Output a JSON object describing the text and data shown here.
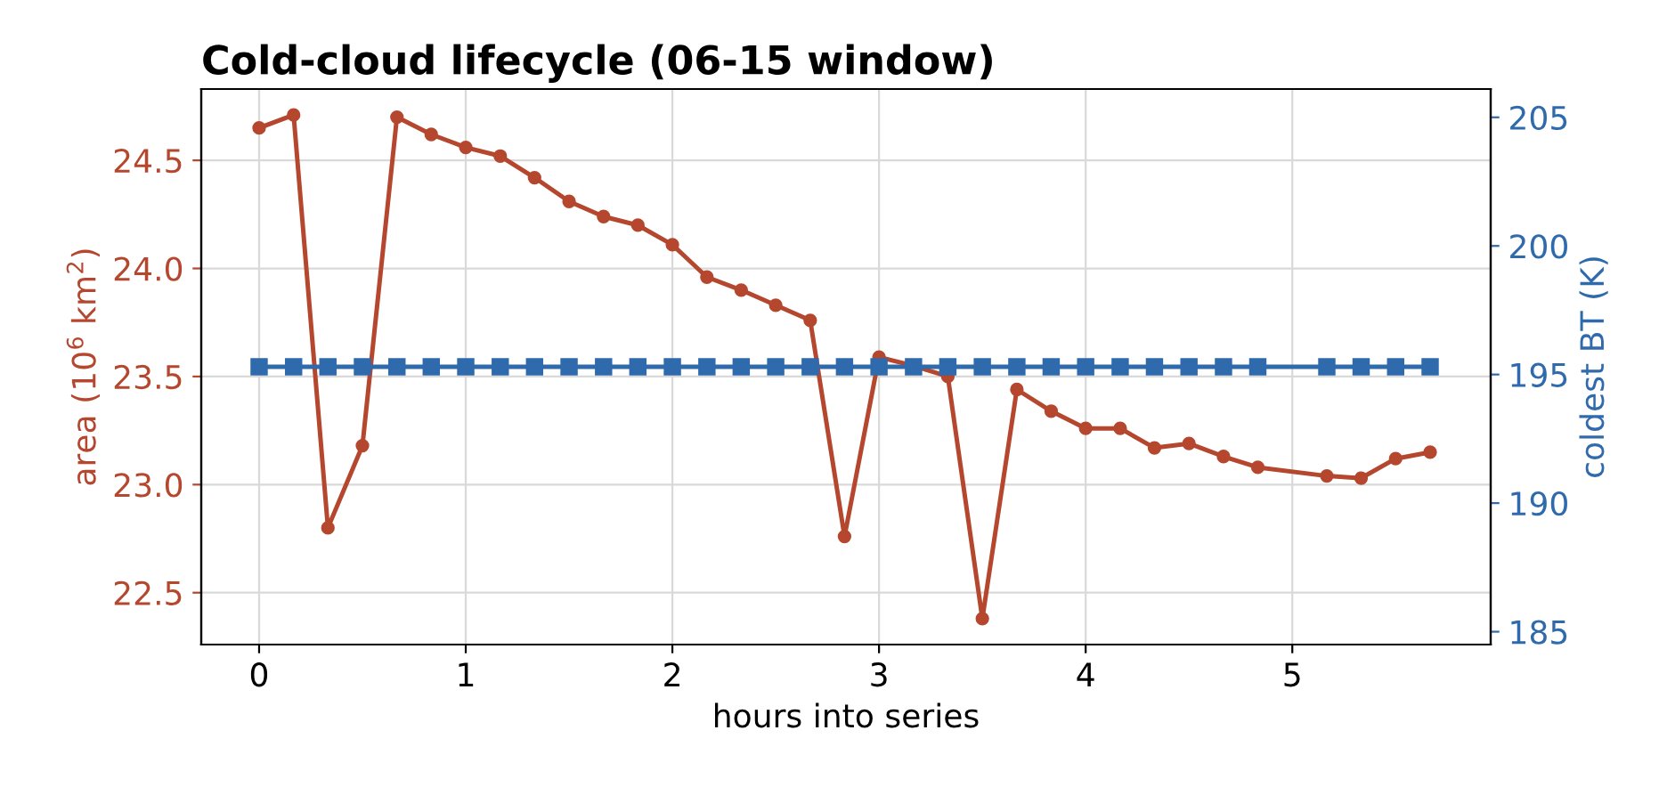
{
  "chart_data": {
    "type": "line",
    "title": "Cold-cloud lifecycle (06-15 window)",
    "xlabel": "hours into series",
    "ylabel": "area (10$^{6}$ km$^{2}$)",
    "y2label": "coldest BT (K)",
    "x": [
      0,
      0.167,
      0.333,
      0.5,
      0.667,
      0.833,
      1.0,
      1.167,
      1.333,
      1.5,
      1.667,
      1.833,
      2.0,
      2.167,
      2.333,
      2.5,
      2.667,
      2.833,
      3.0,
      3.167,
      3.333,
      3.5,
      3.667,
      3.833,
      4.0,
      4.167,
      4.333,
      4.5,
      4.667,
      4.833,
      5.167,
      5.333,
      5.5,
      5.667
    ],
    "series": [
      {
        "color": "#b5472f",
        "marker": "circle",
        "values": [
          24.65,
          24.71,
          22.8,
          23.18,
          24.7,
          24.62,
          24.56,
          24.52,
          24.42,
          24.31,
          24.24,
          24.2,
          24.11,
          23.96,
          23.9,
          23.83,
          23.76,
          22.76,
          23.59,
          23.55,
          23.5,
          22.38,
          23.44,
          23.34,
          23.26,
          23.26,
          23.17,
          23.19,
          23.13,
          23.08,
          23.04,
          23.03,
          23.12,
          23.15
        ]
      },
      {
        "color": "#2f6aad",
        "marker": "square",
        "axis": "y2",
        "values": [
          195.3,
          195.3,
          195.3,
          195.3,
          195.3,
          195.3,
          195.3,
          195.3,
          195.3,
          195.3,
          195.3,
          195.3,
          195.3,
          195.3,
          195.3,
          195.3,
          195.3,
          195.3,
          195.3,
          195.3,
          195.3,
          195.3,
          195.3,
          195.3,
          195.3,
          195.3,
          195.3,
          195.3,
          195.3,
          195.3,
          195.3,
          195.3,
          195.3,
          195.3
        ]
      }
    ],
    "xlim": [
      -0.28,
      5.96
    ],
    "xticks": [
      0,
      1,
      2,
      3,
      4,
      5
    ],
    "ylim": [
      22.26,
      24.83
    ],
    "yticks": [
      22.5,
      {
        "value": 23,
        "label": "23.0"
      },
      23.5,
      {
        "value": 24,
        "label": "24.0"
      },
      24.5
    ],
    "y2lim": [
      184.5,
      206.1
    ],
    "y2ticks": [
      185,
      190,
      195,
      200,
      205
    ],
    "grid": true,
    "legend": false
  }
}
